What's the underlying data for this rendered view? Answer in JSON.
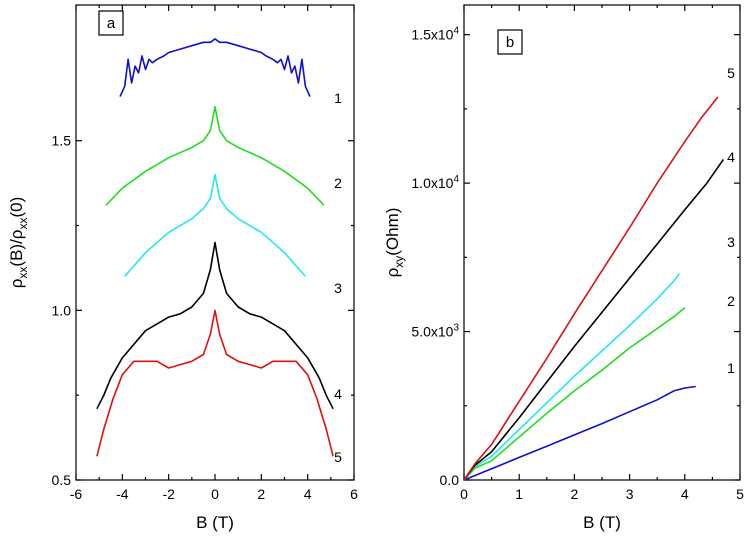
{
  "chart_data": [
    {
      "panel_label": "a",
      "type": "line",
      "xlabel": "B (T)",
      "ylabel": "ρxx(B)/ρxx(0)",
      "xlim": [
        -6,
        6
      ],
      "ylim": [
        0.5,
        1.9
      ],
      "xticks": [
        -6,
        -4,
        -2,
        0,
        2,
        4,
        6
      ],
      "xtick_labels": [
        "-6",
        "-4",
        "-2",
        "0",
        "2",
        "4",
        "6"
      ],
      "yticks": [
        0.5,
        1.0,
        1.5
      ],
      "ytick_labels": [
        "0.5",
        "1.0",
        "1.5"
      ],
      "grid": false,
      "series": [
        {
          "label": "1",
          "color": "#1010c8",
          "x": [
            -4.1,
            -3.9,
            -3.75,
            -3.6,
            -3.45,
            -3.3,
            -3.15,
            -3.0,
            -2.85,
            -2.7,
            -2.5,
            -2.2,
            -2.0,
            -1.5,
            -1.0,
            -0.5,
            -0.2,
            0.0,
            0.2,
            0.5,
            1.0,
            1.5,
            2.0,
            2.2,
            2.5,
            2.7,
            2.85,
            3.0,
            3.15,
            3.3,
            3.45,
            3.6,
            3.75,
            3.9,
            4.1
          ],
          "y": [
            1.63,
            1.66,
            1.74,
            1.67,
            1.72,
            1.7,
            1.75,
            1.71,
            1.74,
            1.73,
            1.74,
            1.75,
            1.76,
            1.77,
            1.78,
            1.79,
            1.79,
            1.8,
            1.79,
            1.79,
            1.78,
            1.77,
            1.76,
            1.75,
            1.74,
            1.73,
            1.74,
            1.71,
            1.75,
            1.7,
            1.72,
            1.67,
            1.74,
            1.66,
            1.63
          ]
        },
        {
          "label": "2",
          "color": "#22dd22",
          "x": [
            -4.7,
            -4.0,
            -3.0,
            -2.0,
            -1.0,
            -0.5,
            -0.2,
            0.0,
            0.2,
            0.5,
            1.0,
            2.0,
            3.0,
            4.0,
            4.7
          ],
          "y": [
            1.31,
            1.36,
            1.41,
            1.45,
            1.48,
            1.5,
            1.53,
            1.6,
            1.53,
            1.5,
            1.48,
            1.45,
            1.41,
            1.36,
            1.31
          ]
        },
        {
          "label": "3",
          "color": "#22e8ee",
          "x": [
            -3.9,
            -3.0,
            -2.0,
            -1.0,
            -0.5,
            -0.2,
            0.0,
            0.2,
            0.5,
            1.0,
            2.0,
            3.0,
            3.9
          ],
          "y": [
            1.1,
            1.17,
            1.23,
            1.27,
            1.3,
            1.33,
            1.4,
            1.33,
            1.3,
            1.27,
            1.23,
            1.17,
            1.1
          ]
        },
        {
          "label": "4",
          "color": "#000000",
          "x": [
            -5.1,
            -4.8,
            -4.5,
            -4.0,
            -3.0,
            -2.0,
            -1.5,
            -1.0,
            -0.5,
            -0.2,
            0.0,
            0.2,
            0.5,
            1.0,
            1.5,
            2.0,
            3.0,
            4.0,
            4.5,
            4.8,
            5.1
          ],
          "y": [
            0.71,
            0.75,
            0.8,
            0.86,
            0.94,
            0.98,
            0.99,
            1.01,
            1.05,
            1.12,
            1.2,
            1.12,
            1.05,
            1.01,
            0.99,
            0.98,
            0.94,
            0.86,
            0.8,
            0.75,
            0.71
          ]
        },
        {
          "label": "5",
          "color": "#dd1111",
          "x": [
            -5.1,
            -4.8,
            -4.4,
            -4.0,
            -3.5,
            -3.0,
            -2.5,
            -2.0,
            -1.5,
            -1.0,
            -0.5,
            -0.2,
            0.0,
            0.2,
            0.5,
            1.0,
            1.5,
            2.0,
            2.5,
            3.0,
            3.5,
            4.0,
            4.4,
            4.8,
            5.1
          ],
          "y": [
            0.57,
            0.65,
            0.74,
            0.81,
            0.85,
            0.85,
            0.85,
            0.83,
            0.84,
            0.85,
            0.87,
            0.93,
            1.0,
            0.93,
            0.87,
            0.85,
            0.84,
            0.83,
            0.85,
            0.85,
            0.85,
            0.81,
            0.74,
            0.65,
            0.57
          ]
        }
      ]
    },
    {
      "panel_label": "b",
      "type": "line",
      "xlabel": "B (T)",
      "ylabel": "ρxy(Ohm)",
      "xlim": [
        0,
        5
      ],
      "ylim": [
        0,
        16000
      ],
      "xticks": [
        0,
        1,
        2,
        3,
        4,
        5
      ],
      "xtick_labels": [
        "0",
        "1",
        "2",
        "3",
        "4",
        "5"
      ],
      "yticks": [
        0,
        5000,
        10000,
        15000
      ],
      "ytick_labels": [
        {
          "mantissa": "0.0",
          "exponent": ""
        },
        {
          "mantissa": "5.0x10",
          "exponent": "3"
        },
        {
          "mantissa": "1.0x10",
          "exponent": "4"
        },
        {
          "mantissa": "1.5x10",
          "exponent": "4"
        }
      ],
      "grid": false,
      "series": [
        {
          "label": "1",
          "color": "#1010c8",
          "x": [
            0,
            0.5,
            1.0,
            1.5,
            2.0,
            2.5,
            3.0,
            3.5,
            3.8,
            4.0,
            4.2
          ],
          "y": [
            0,
            380,
            760,
            1140,
            1520,
            1900,
            2300,
            2700,
            3000,
            3100,
            3150
          ]
        },
        {
          "label": "2",
          "color": "#22dd22",
          "x": [
            0,
            0.2,
            0.5,
            1.0,
            1.5,
            2.0,
            2.5,
            3.0,
            3.5,
            3.8,
            4.0
          ],
          "y": [
            0,
            400,
            650,
            1450,
            2250,
            3000,
            3700,
            4450,
            5100,
            5500,
            5800
          ]
        },
        {
          "label": "3",
          "color": "#22e8ee",
          "x": [
            0,
            0.2,
            0.5,
            1.0,
            1.5,
            2.0,
            2.5,
            3.0,
            3.5,
            3.8,
            3.9
          ],
          "y": [
            0,
            450,
            800,
            1700,
            2600,
            3500,
            4350,
            5200,
            6100,
            6700,
            6950
          ]
        },
        {
          "label": "4",
          "color": "#000000",
          "x": [
            0,
            0.2,
            0.5,
            1.0,
            1.5,
            2.0,
            2.5,
            3.0,
            3.5,
            4.0,
            4.4,
            4.7
          ],
          "y": [
            0,
            500,
            950,
            2100,
            3300,
            4500,
            5650,
            6800,
            7950,
            9100,
            10000,
            10800
          ]
        },
        {
          "label": "5",
          "color": "#dd1111",
          "x": [
            0,
            0.2,
            0.5,
            1.0,
            1.5,
            2.0,
            2.5,
            3.0,
            3.5,
            4.0,
            4.3,
            4.6
          ],
          "y": [
            0,
            550,
            1200,
            2650,
            4100,
            5600,
            7050,
            8500,
            10000,
            11400,
            12200,
            12900
          ]
        }
      ]
    }
  ]
}
